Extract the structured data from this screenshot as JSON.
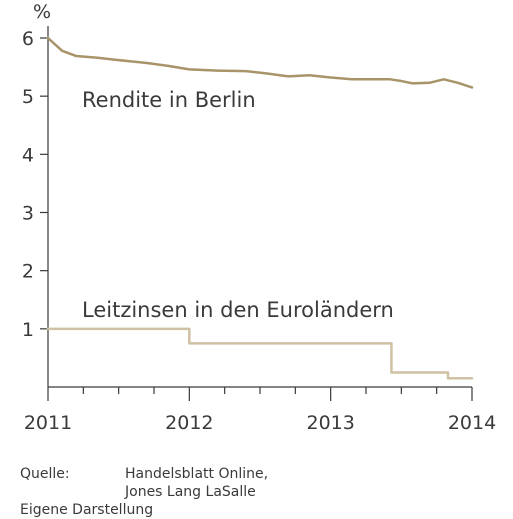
{
  "chart_data": {
    "type": "line",
    "ylabel": "%",
    "ylim": [
      0,
      6
    ],
    "yticks": [
      1,
      2,
      3,
      4,
      5,
      6
    ],
    "xlim": [
      2011,
      2014
    ],
    "xticks": [
      2011,
      2012,
      2013,
      2014
    ],
    "grid": false,
    "series": [
      {
        "name": "Rendite in Berlin",
        "color": "#a89468",
        "x": [
          2011.0,
          2011.1,
          2011.2,
          2011.35,
          2011.5,
          2011.7,
          2011.85,
          2012.0,
          2012.2,
          2012.4,
          2012.55,
          2012.7,
          2012.85,
          2013.0,
          2013.15,
          2013.3,
          2013.42,
          2013.5,
          2013.58,
          2013.7,
          2013.8,
          2013.9,
          2014.0
        ],
        "y": [
          6.0,
          5.78,
          5.69,
          5.66,
          5.62,
          5.57,
          5.52,
          5.46,
          5.44,
          5.43,
          5.39,
          5.34,
          5.36,
          5.32,
          5.29,
          5.29,
          5.29,
          5.26,
          5.22,
          5.23,
          5.29,
          5.23,
          5.15
        ]
      },
      {
        "name": "Leitzinsen in den Euroländern",
        "color": "#cfc1a3",
        "step": true,
        "x": [
          2011.0,
          2012.0,
          2013.43,
          2013.83,
          2014.0
        ],
        "y": [
          1.0,
          0.75,
          0.25,
          0.15,
          0.15
        ]
      }
    ]
  },
  "source": {
    "label": "Quelle:",
    "lines": [
      "Handelsblatt Online,",
      "Jones Lang LaSalle"
    ],
    "own": "Eigene Darstellung"
  }
}
